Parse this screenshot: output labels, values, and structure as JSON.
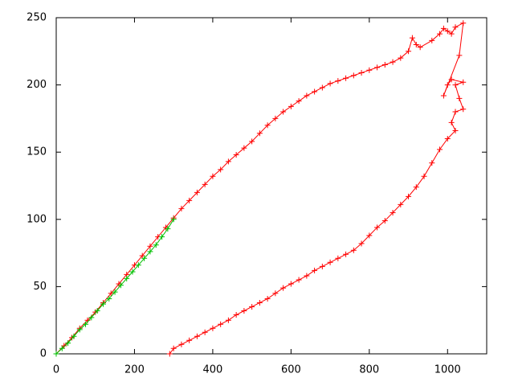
{
  "chart_data": {
    "type": "line",
    "marker": "plus",
    "xlim": [
      0,
      1100
    ],
    "xticks": [
      0,
      200,
      400,
      600,
      800,
      1000
    ],
    "ylim": [
      0,
      250
    ],
    "yticks": [
      0,
      50,
      100,
      150,
      200,
      250
    ],
    "series": [
      {
        "color": "#ff0000",
        "x": [
          0,
          20,
          40,
          60,
          80,
          100,
          120,
          140,
          160,
          180,
          200,
          220,
          240,
          260,
          280,
          300,
          320,
          340,
          360,
          380,
          400,
          420,
          440,
          460,
          480,
          500,
          520,
          540,
          560,
          580,
          600,
          620,
          640,
          660,
          680,
          700,
          720,
          740,
          760,
          780,
          800,
          820,
          840,
          860,
          880,
          900,
          910,
          920,
          930,
          960,
          980,
          990,
          1000,
          1010,
          1020,
          1040,
          1030,
          990,
          1000,
          1010,
          1040,
          1020,
          1030,
          1040,
          1020,
          1010,
          1020,
          1000,
          980,
          960,
          940,
          920,
          900,
          880,
          860,
          840,
          820,
          800,
          780,
          760,
          740,
          720,
          700,
          680,
          660,
          640,
          620,
          600,
          580,
          560,
          540,
          520,
          500,
          480,
          460,
          440,
          420,
          400,
          380,
          360,
          340,
          320,
          300,
          290
        ],
        "values": [
          0,
          6,
          12,
          19,
          25,
          31,
          38,
          45,
          52,
          59,
          66,
          73,
          80,
          87,
          94,
          101,
          108,
          114,
          120,
          126,
          132,
          137,
          143,
          148,
          153,
          158,
          164,
          170,
          175,
          180,
          184,
          188,
          192,
          195,
          198,
          201,
          203,
          205,
          207,
          209,
          211,
          213,
          215,
          217,
          220,
          225,
          235,
          230,
          228,
          233,
          238,
          242,
          240,
          238,
          243,
          246,
          222,
          192,
          200,
          204,
          202,
          200,
          190,
          182,
          180,
          172,
          166,
          160,
          152,
          142,
          132,
          124,
          117,
          111,
          105,
          99,
          94,
          88,
          82,
          77,
          74,
          71,
          68,
          65,
          62,
          58,
          55,
          52,
          49,
          45,
          41,
          38,
          35,
          32,
          29,
          25,
          22,
          19,
          16,
          13,
          10,
          7,
          4,
          0
        ]
      },
      {
        "color": "#00c000",
        "x": [
          0,
          15,
          30,
          45,
          60,
          75,
          90,
          105,
          120,
          135,
          150,
          165,
          180,
          195,
          210,
          225,
          240,
          255,
          270,
          285,
          300
        ],
        "values": [
          0,
          4,
          8,
          13,
          18,
          22,
          27,
          32,
          37,
          41,
          46,
          51,
          56,
          61,
          66,
          71,
          76,
          81,
          87,
          93,
          100
        ]
      }
    ]
  }
}
